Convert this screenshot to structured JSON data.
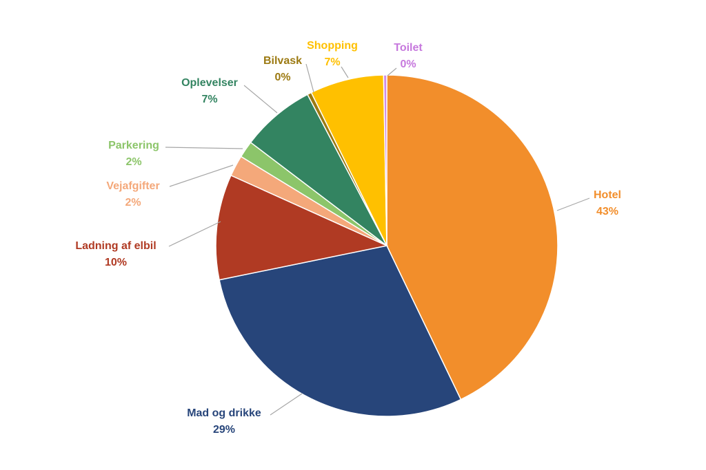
{
  "chart_data": {
    "type": "pie",
    "title": "",
    "slices": [
      {
        "label": "Hotel",
        "value": 43,
        "pct_label": "43%",
        "color": "#F28E2B",
        "label_color": "#F28E2B"
      },
      {
        "label": "Mad og drikke",
        "value": 29,
        "pct_label": "29%",
        "color": "#27457A",
        "label_color": "#27457A"
      },
      {
        "label": "Ladning af elbil",
        "value": 10,
        "pct_label": "10%",
        "color": "#B03A23",
        "label_color": "#B03A23"
      },
      {
        "label": "Vejafgifter",
        "value": 2,
        "pct_label": "2%",
        "color": "#F4A87A",
        "label_color": "#F4A87A"
      },
      {
        "label": "Parkering",
        "value": 1.6,
        "pct_label": "2%",
        "color": "#8CC56A",
        "label_color": "#8CC56A"
      },
      {
        "label": "Oplevelser",
        "value": 7,
        "pct_label": "7%",
        "color": "#338461",
        "label_color": "#338461"
      },
      {
        "label": "Bilvask",
        "value": 0.4,
        "pct_label": "0%",
        "color": "#9C7A12",
        "label_color": "#9C7A12"
      },
      {
        "label": "Shopping",
        "value": 7,
        "pct_label": "7%",
        "color": "#FFC000",
        "label_color": "#FFC000"
      },
      {
        "label": "Toilet",
        "value": 0.3,
        "pct_label": "0%",
        "color": "#CF8BE6",
        "label_color": "#C678DD"
      }
    ]
  }
}
